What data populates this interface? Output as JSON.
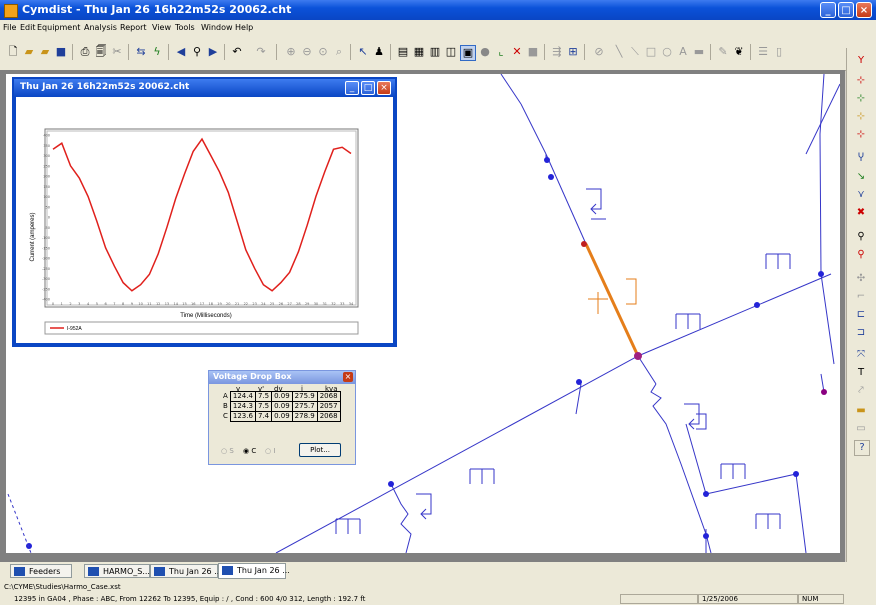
{
  "app": {
    "title": "Cymdist - Thu Jan 26 16h22m52s 20062.cht"
  },
  "menu": [
    "File",
    "Edit",
    "Equipment",
    "Analysis",
    "Report",
    "View",
    "Tools",
    "Window",
    "Help"
  ],
  "toolbar_icons": [
    "new-icon",
    "open-icon",
    "open-folder-icon",
    "save-icon",
    "print-icon",
    "print-preview-icon",
    "cut-icon",
    "undo-icon",
    "redo-icon",
    "zoom-icon",
    "find-icon"
  ],
  "chart_window": {
    "title": "Thu Jan 26 16h22m52s 20062.cht"
  },
  "chart_data": {
    "type": "line",
    "title": "",
    "xlabel": "Time (Milliseconds)",
    "ylabel": "Current (amperes)",
    "ylim": [
      -400,
      400
    ],
    "xlim": [
      0,
      34
    ],
    "grid": false,
    "legend": "bottom-left",
    "series": [
      {
        "name": "I-952A",
        "color": "#e0201c",
        "x": [
          0,
          1,
          2,
          3,
          4,
          5,
          6,
          7,
          8,
          9,
          10,
          11,
          12,
          13,
          14,
          15,
          16,
          17,
          18,
          19,
          20,
          21,
          22,
          23,
          24,
          25,
          26,
          27,
          28,
          29,
          30,
          31,
          32,
          33,
          34
        ],
        "values": [
          330,
          360,
          250,
          190,
          100,
          -20,
          -150,
          -240,
          -320,
          -360,
          -330,
          -280,
          -180,
          -50,
          90,
          210,
          320,
          380,
          300,
          220,
          120,
          -20,
          -160,
          -250,
          -330,
          -360,
          -320,
          -270,
          -170,
          -40,
          100,
          220,
          330,
          340,
          310
        ]
      }
    ]
  },
  "voltage_drop_box": {
    "title": "Voltage Drop Box",
    "headers": [
      "v",
      "v'",
      "dv",
      "i",
      "kva"
    ],
    "rows": [
      {
        "phase": "A",
        "v": "124.4",
        "v2": "7.5",
        "dv": "0.09",
        "i": "275.9",
        "kva": "2068"
      },
      {
        "phase": "B",
        "v": "124.3",
        "v2": "7.5",
        "dv": "0.09",
        "i": "275.7",
        "kva": "2057"
      },
      {
        "phase": "C",
        "v": "123.6",
        "v2": "7.4",
        "dv": "0.09",
        "i": "278.9",
        "kva": "2068"
      }
    ],
    "radio_options": [
      "S",
      "C",
      "I"
    ],
    "plot_label": "Plot..."
  },
  "tabs": [
    {
      "label": "Feeders"
    },
    {
      "label": "HARMO_S..."
    },
    {
      "label": "Thu Jan 26 ..."
    },
    {
      "label": "Thu Jan 26 ..."
    }
  ],
  "status": {
    "path": "C:\\CYME\\Studies\\Harmo_Case.xst",
    "info": "12395 in GA04 , Phase : ABC, From 12262 To 12395, Equip : / , Cond : 600 4/0 312, Length :  192.7 ft",
    "date": "1/25/2006",
    "mode": "NUM"
  },
  "colors": {
    "title_blue": "#0a46c4",
    "network_line": "#3636c8",
    "highlight": "#e57e1a",
    "curve": "#e0201c"
  }
}
